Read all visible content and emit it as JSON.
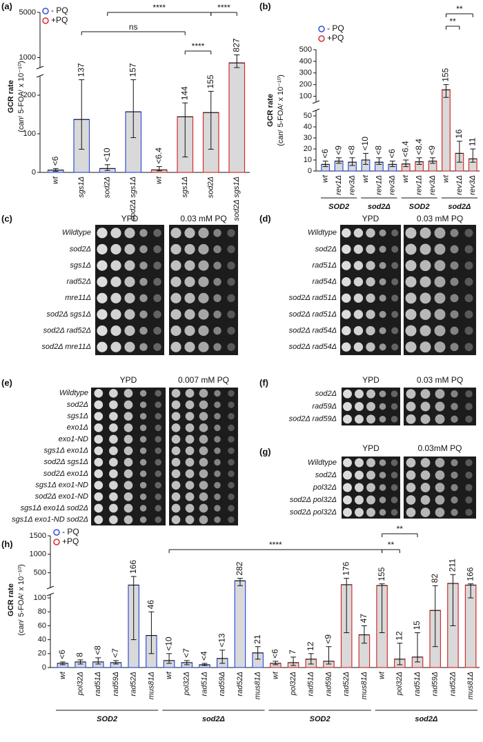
{
  "chart_data": [
    {
      "type": "bar",
      "panel_label": "(a)",
      "y_label": [
        "GCR rate",
        "(canʳ 5-FOAʳ x 10⁻¹⁰)"
      ],
      "categories": [
        "wt",
        "sgs1Δ",
        "sod2Δ",
        "sod2Δ sgs1Δ",
        "wt",
        "sgs1Δ",
        "sod2Δ",
        "sod2Δ sgs1Δ"
      ],
      "y_lower": {
        "lim": [
          0,
          250
        ],
        "ticks": [
          0,
          100,
          200
        ]
      },
      "y_upper": {
        "lim": [
          700,
          5000
        ],
        "ticks": [
          1000,
          5000
        ],
        "log": true
      },
      "series": [
        {
          "name": "- PQ",
          "color": "#2f4fd8",
          "values": [
            6,
            137,
            10,
            157,
            null,
            null,
            null,
            null
          ],
          "value_labels": [
            "<6",
            "137",
            "<10",
            "157",
            null,
            null,
            null,
            null
          ],
          "error_low": [
            3,
            60,
            5,
            90,
            null,
            null,
            null,
            null
          ],
          "error_high": [
            10,
            240,
            20,
            240,
            null,
            null,
            null,
            null
          ]
        },
        {
          "name": "+PQ",
          "color": "#d42c2c",
          "values": [
            null,
            null,
            null,
            null,
            6.4,
            144,
            155,
            827
          ],
          "value_labels": [
            null,
            null,
            null,
            null,
            "<6.4",
            "144",
            "155",
            "827"
          ],
          "error_low": [
            null,
            null,
            null,
            null,
            4,
            40,
            60,
            700
          ],
          "error_high": [
            null,
            null,
            null,
            null,
            15,
            180,
            210,
            1100
          ]
        }
      ],
      "brackets": [
        {
          "from": 2,
          "to": 6,
          "label": "****"
        },
        {
          "from": 6,
          "to": 7,
          "label": "****"
        },
        {
          "from": 1,
          "to": 5,
          "label": "ns"
        },
        {
          "from": 5,
          "to": 6,
          "label": "****"
        }
      ]
    },
    {
      "type": "bar",
      "panel_label": "(b)",
      "y_label": [
        "GCR rate",
        "(canʳ 5-FOAʳ x 10⁻¹⁰)"
      ],
      "categories": [
        "wt",
        "rev1Δ",
        "rev3Δ",
        "wt",
        "rev1Δ",
        "rev3Δ",
        "wt",
        "rev1Δ",
        "rev3Δ",
        "wt",
        "rev1Δ",
        "rev3Δ"
      ],
      "y_lower": {
        "lim": [
          0,
          55
        ],
        "ticks": [
          0,
          10,
          20,
          30,
          40,
          50
        ]
      },
      "y_upper": {
        "lim": [
          50,
          500
        ],
        "ticks": [
          100,
          200,
          300,
          400,
          500
        ]
      },
      "series": [
        {
          "name": "- PQ",
          "color": "#2f4fd8",
          "values": [
            6,
            9,
            8,
            10,
            8,
            6,
            null,
            null,
            null,
            null,
            null,
            null
          ],
          "value_labels": [
            "<6",
            "<9",
            "<8",
            "<10",
            "<8",
            "<6",
            null,
            null,
            null,
            null,
            null,
            null
          ],
          "error_low": [
            4,
            7,
            5,
            6,
            6,
            4,
            null,
            null,
            null,
            null,
            null,
            null
          ],
          "error_high": [
            9,
            12,
            12,
            16,
            12,
            9,
            null,
            null,
            null,
            null,
            null,
            null
          ]
        },
        {
          "name": "+PQ",
          "color": "#d42c2c",
          "values": [
            null,
            null,
            null,
            null,
            null,
            null,
            6.4,
            8.4,
            9,
            155,
            16,
            11
          ],
          "value_labels": [
            null,
            null,
            null,
            null,
            null,
            null,
            "<6.4",
            "<8.4",
            "<9",
            "155",
            "16",
            "11"
          ],
          "error_low": [
            null,
            null,
            null,
            null,
            null,
            null,
            4,
            6,
            7,
            90,
            8,
            8
          ],
          "error_high": [
            null,
            null,
            null,
            null,
            null,
            null,
            10,
            12,
            12,
            200,
            27,
            20
          ]
        }
      ],
      "groups": [
        {
          "label": "SOD2",
          "from": 0,
          "to": 2
        },
        {
          "label": "sod2Δ",
          "from": 3,
          "to": 5
        },
        {
          "label": "SOD2",
          "from": 6,
          "to": 8
        },
        {
          "label": "sod2Δ",
          "from": 9,
          "to": 11
        }
      ],
      "brackets": [
        {
          "from": 9,
          "to": 10,
          "label": "**"
        },
        {
          "from": 9,
          "to": 11,
          "label": "**"
        }
      ]
    },
    {
      "type": "bar",
      "panel_label": "(h)",
      "y_label": [
        "GCR rate",
        "(canʳ 5-FOAʳ x 10⁻¹⁰)"
      ],
      "categories": [
        "wt",
        "pol32Δ",
        "rad51Δ",
        "rad59Δ",
        "rad52Δ",
        "mus81Δ",
        "wt",
        "pol32Δ",
        "rad51Δ",
        "rad59Δ",
        "rad52Δ",
        "mus81Δ",
        "wt",
        "pol32Δ",
        "rad51Δ",
        "rad59Δ",
        "rad52Δ",
        "mus81Δ",
        "wt",
        "pol32Δ",
        "rad51Δ",
        "rad59Δ",
        "rad52Δ",
        "mus81Δ"
      ],
      "y_lower": {
        "lim": [
          0,
          105
        ],
        "ticks": [
          0,
          20,
          40,
          60,
          80,
          100
        ]
      },
      "y_upper": {
        "lim": [
          100,
          1500
        ],
        "ticks": [
          500,
          1000,
          1500
        ]
      },
      "series": [
        {
          "name": "- PQ",
          "color": "#2f4fd8",
          "values": [
            6,
            8,
            8,
            7,
            166,
            46,
            10,
            7,
            4,
            13,
            282,
            21,
            null,
            null,
            null,
            null,
            null,
            null,
            null,
            null,
            null,
            null,
            null,
            null
          ],
          "value_labels": [
            "<6",
            "8",
            "<8",
            "<7",
            "166",
            "46",
            "<10",
            "<7",
            "<4",
            "<13",
            "282",
            "21",
            null,
            null,
            null,
            null,
            null,
            null,
            null,
            null,
            null,
            null,
            null,
            null
          ],
          "error_low": [
            4,
            5,
            5,
            5,
            40,
            20,
            6,
            4,
            3,
            6,
            150,
            12,
            null,
            null,
            null,
            null,
            null,
            null,
            null,
            null,
            null,
            null,
            null,
            null
          ],
          "error_high": [
            8,
            11,
            14,
            10,
            400,
            80,
            20,
            10,
            6,
            25,
            350,
            30,
            null,
            null,
            null,
            null,
            null,
            null,
            null,
            null,
            null,
            null,
            null,
            null
          ]
        },
        {
          "name": "+PQ",
          "color": "#d42c2c",
          "values": [
            null,
            null,
            null,
            null,
            null,
            null,
            null,
            null,
            null,
            null,
            null,
            null,
            6,
            7,
            12,
            9,
            176,
            47,
            155,
            12,
            15,
            82,
            211,
            166
          ],
          "value_labels": [
            null,
            null,
            null,
            null,
            null,
            null,
            null,
            null,
            null,
            null,
            null,
            null,
            "<6",
            "7",
            "12",
            "<9",
            "176",
            "47",
            "155",
            "12",
            "15",
            "82",
            "211",
            "166"
          ],
          "error_low": [
            null,
            null,
            null,
            null,
            null,
            null,
            null,
            null,
            null,
            null,
            null,
            null,
            4,
            3,
            5,
            5,
            50,
            35,
            50,
            4,
            8,
            30,
            60,
            100
          ],
          "error_high": [
            null,
            null,
            null,
            null,
            null,
            null,
            null,
            null,
            null,
            null,
            null,
            null,
            9,
            15,
            20,
            30,
            350,
            60,
            200,
            35,
            50,
            150,
            450,
            200
          ]
        }
      ],
      "groups": [
        {
          "label": "SOD2",
          "from": 0,
          "to": 5
        },
        {
          "label": "sod2Δ",
          "from": 6,
          "to": 11
        },
        {
          "label": "SOD2",
          "from": 12,
          "to": 17
        },
        {
          "label": "sod2Δ",
          "from": 18,
          "to": 23
        }
      ],
      "brackets": [
        {
          "from": 6,
          "to": 18,
          "label": "****"
        },
        {
          "from": 18,
          "to": 19,
          "label": "**"
        },
        {
          "from": 18,
          "to": 20,
          "label": "**"
        }
      ]
    }
  ],
  "spot_panels": [
    {
      "panel_label": "(c)",
      "conditions": [
        "YPD",
        "0.03 mM PQ"
      ],
      "strains": [
        "Wildtype",
        "sod2Δ",
        "sgs1Δ",
        "rad52Δ",
        "mre11Δ",
        "sod2Δ sgs1Δ",
        "sod2Δ rad52Δ",
        "sod2Δ mre11Δ"
      ]
    },
    {
      "panel_label": "(d)",
      "conditions": [
        "YPD",
        "0.03 mM PQ"
      ],
      "strains": [
        "Wildtype",
        "sod2Δ",
        "rad51Δ",
        "rad54Δ",
        "sod2Δ rad51Δ",
        "sod2Δ rad51Δ",
        "sod2Δ rad54Δ",
        "sod2Δ rad54Δ"
      ]
    },
    {
      "panel_label": "(e)",
      "conditions": [
        "YPD",
        "0.007 mM PQ"
      ],
      "strains": [
        "Wildtype",
        "sod2Δ",
        "sgs1Δ",
        "exo1Δ",
        "exo1-ND",
        "sgs1Δ exo1Δ",
        "sod2Δ sgs1Δ",
        "sod2Δ exo1Δ",
        "sgs1Δ exo1-ND",
        "sod2Δ exo1-ND",
        "sgs1Δ exo1Δ sod2Δ",
        "sgs1Δ exo1-ND sod2Δ"
      ]
    },
    {
      "panel_label": "(f)",
      "conditions": [
        "YPD",
        "0.03 mM PQ"
      ],
      "strains": [
        "sod2Δ",
        "rad59Δ",
        "sod2Δ rad59Δ"
      ]
    },
    {
      "panel_label": "(g)",
      "conditions": [
        "YPD",
        "0.03mM PQ"
      ],
      "strains": [
        "Wildtype",
        "sod2Δ",
        "pol32Δ",
        "sod2Δ pol32Δ",
        "sod2Δ pol32Δ"
      ]
    }
  ]
}
